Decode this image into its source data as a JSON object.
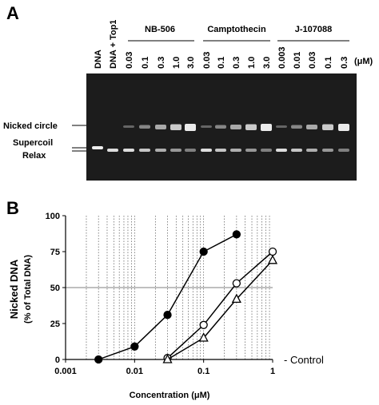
{
  "panel_a": {
    "label": "A",
    "lanes": [
      "DNA",
      "DNA + Top1",
      "0.03",
      "0.1",
      "0.3",
      "1.0",
      "3.0",
      "0.03",
      "0.1",
      "0.3",
      "1.0",
      "3.0",
      "0.003",
      "0.01",
      "0.03",
      "0.1",
      "0.3"
    ],
    "unit": "(μM)",
    "groups": [
      "NB-506",
      "Camptothecin",
      "J-107088"
    ],
    "bands": [
      "Nicked circle",
      "Supercoil",
      "Relax"
    ]
  },
  "chart_data": {
    "type": "line",
    "panel_label": "B",
    "y_label": [
      "Nicked DNA",
      "(% of Total DNA)"
    ],
    "x_label": "Concentration (μM)",
    "annotation": "- Control",
    "log_x": true,
    "xlim": [
      0.001,
      1
    ],
    "xticks": [
      0.001,
      0.01,
      0.1,
      1
    ],
    "ylim": [
      0,
      100
    ],
    "yticks": [
      0,
      25,
      50,
      75,
      100
    ],
    "reference_line": 50,
    "series": [
      {
        "marker": "filled-circle",
        "color": "#000000",
        "x": [
          0.003,
          0.01,
          0.03,
          0.1,
          0.3
        ],
        "values": [
          0,
          9,
          31,
          75,
          87
        ]
      },
      {
        "marker": "open-circle",
        "color": "#000000",
        "x": [
          0.03,
          0.1,
          0.3,
          1
        ],
        "values": [
          1,
          24,
          53,
          75
        ]
      },
      {
        "marker": "open-triangle",
        "color": "#000000",
        "x": [
          0.03,
          0.1,
          0.3,
          1
        ],
        "values": [
          0,
          15,
          42,
          69
        ]
      }
    ]
  }
}
